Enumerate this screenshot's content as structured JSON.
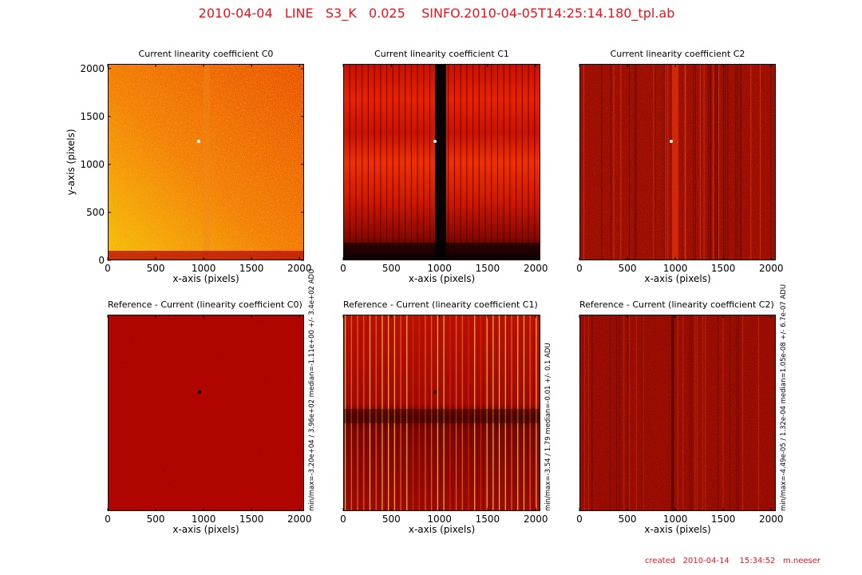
{
  "figure": {
    "suptitle": "2010-04-04   LINE   S3_K   0.025    SINFO.2010-04-05T14:25:14.180_tpl.ab",
    "footer": "created   2010-04-14    15:34:52   m.neeser",
    "colors": {
      "title": "#e8141c",
      "footer": "#e8141c"
    }
  },
  "chart_data": [
    {
      "type": "heatmap",
      "title": "Current linearity coefficient C0",
      "xlabel": "x-axis (pixels)",
      "ylabel": "y-axis (pixels)",
      "xlim": [
        0,
        2048
      ],
      "ylim": [
        0,
        2048
      ],
      "xticks": [
        0,
        500,
        1000,
        1500,
        2000
      ],
      "yticks": [
        0,
        500,
        1000,
        1500,
        2000
      ],
      "colormap": "hot",
      "side_annotation": ""
    },
    {
      "type": "heatmap",
      "title": "Current linearity coefficient C1",
      "xlabel": "x-axis (pixels)",
      "ylabel": "",
      "xlim": [
        0,
        2048
      ],
      "ylim": [
        0,
        2048
      ],
      "xticks": [
        0,
        500,
        1000,
        1500,
        2000
      ],
      "yticks": [],
      "colormap": "hot",
      "side_annotation": ""
    },
    {
      "type": "heatmap",
      "title": "Current linearity coefficient C2",
      "xlabel": "x-axis (pixels)",
      "ylabel": "",
      "xlim": [
        0,
        2048
      ],
      "ylim": [
        0,
        2048
      ],
      "xticks": [
        0,
        500,
        1000,
        1500,
        2000
      ],
      "yticks": [],
      "colormap": "hot",
      "side_annotation": ""
    },
    {
      "type": "heatmap",
      "title": "Reference - Current (linearity coefficient C0)",
      "xlabel": "x-axis (pixels)",
      "ylabel": "",
      "xlim": [
        0,
        2048
      ],
      "ylim": [
        0,
        2048
      ],
      "xticks": [
        0,
        500,
        1000,
        1500,
        2000
      ],
      "yticks": [],
      "colormap": "hot",
      "side_annotation": "min/max=-3.20e+04 / 3.96e+02 median=-1.11e+00 +/- 3.4e+02 ADU"
    },
    {
      "type": "heatmap",
      "title": "Reference - Current (linearity coefficient C1)",
      "xlabel": "x-axis (pixels)",
      "ylabel": "",
      "xlim": [
        0,
        2048
      ],
      "ylim": [
        0,
        2048
      ],
      "xticks": [
        0,
        500,
        1000,
        1500,
        2000
      ],
      "yticks": [],
      "colormap": "hot",
      "side_annotation": "min/max=-3.54 / 1.79 median=-0.01 +/- 0.1 ADU"
    },
    {
      "type": "heatmap",
      "title": "Reference - Current (linearity coefficient C2)",
      "xlabel": "x-axis (pixels)",
      "ylabel": "",
      "xlim": [
        0,
        2048
      ],
      "ylim": [
        0,
        2048
      ],
      "xticks": [
        0,
        500,
        1000,
        1500,
        2000
      ],
      "yticks": [],
      "colormap": "hot",
      "side_annotation": "min/max=-4.49e-05 / 1.32e-04 median=1.05e-08 +/- 6.7e-07 ADU"
    }
  ]
}
